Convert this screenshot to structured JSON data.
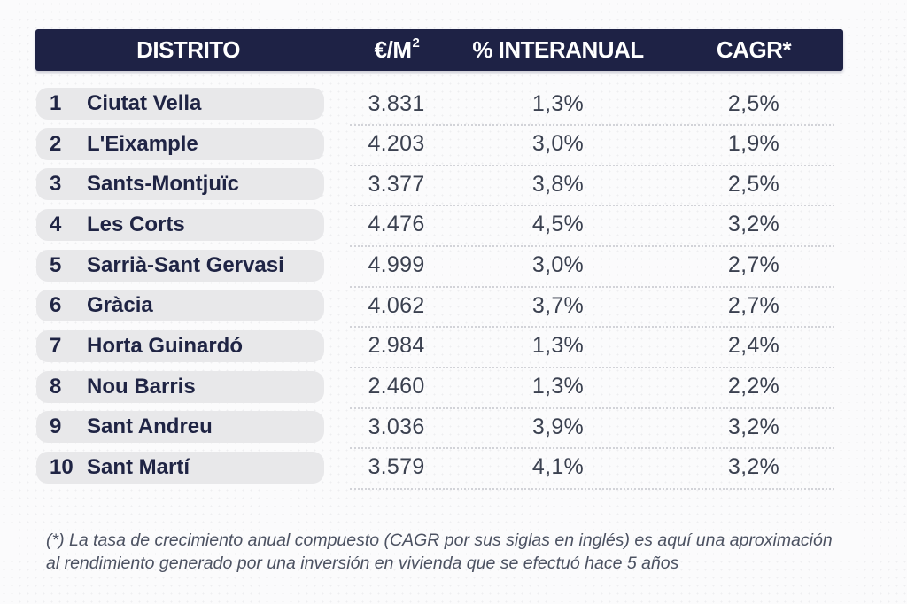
{
  "colors": {
    "header_bg": "#1e2245",
    "pill_bg": "#e8e8ea",
    "district_text": "#1f2444",
    "value_text": "#3b4150",
    "footnote_text": "#4c5262",
    "separator": "#d2d3d8"
  },
  "table": {
    "header": {
      "col1": "DISTRITO",
      "col2_base": "€/M",
      "col2_sup": "2",
      "col3": "% INTERANUAL",
      "col4": "CAGR*"
    },
    "rows": [
      {
        "rank": "1",
        "district": "Ciutat Vella",
        "eur_m2": "3.831",
        "interanual": "1,3%",
        "cagr": "2,5%"
      },
      {
        "rank": "2",
        "district": "L'Eixample",
        "eur_m2": "4.203",
        "interanual": "3,0%",
        "cagr": "1,9%"
      },
      {
        "rank": "3",
        "district": "Sants-Montjuïc",
        "eur_m2": "3.377",
        "interanual": "3,8%",
        "cagr": "2,5%"
      },
      {
        "rank": "4",
        "district": "Les Corts",
        "eur_m2": "4.476",
        "interanual": "4,5%",
        "cagr": "3,2%"
      },
      {
        "rank": "5",
        "district": "Sarrià-Sant Gervasi",
        "eur_m2": "4.999",
        "interanual": "3,0%",
        "cagr": "2,7%"
      },
      {
        "rank": "6",
        "district": "Gràcia",
        "eur_m2": "4.062",
        "interanual": "3,7%",
        "cagr": "2,7%"
      },
      {
        "rank": "7",
        "district": "Horta Guinardó",
        "eur_m2": "2.984",
        "interanual": "1,3%",
        "cagr": "2,4%"
      },
      {
        "rank": "8",
        "district": "Nou Barris",
        "eur_m2": "2.460",
        "interanual": "1,3%",
        "cagr": "2,2%"
      },
      {
        "rank": "9",
        "district": "Sant Andreu",
        "eur_m2": "3.036",
        "interanual": "3,9%",
        "cagr": "3,2%"
      },
      {
        "rank": "10",
        "district": "Sant Martí",
        "eur_m2": "3.579",
        "interanual": "4,1%",
        "cagr": "3,2%"
      }
    ]
  },
  "footnote": {
    "line1": "(*) La tasa de crecimiento anual compuesto (CAGR por sus siglas en inglés) es aquí una aproximación",
    "line2": "al rendimiento generado por una inversión en vivienda que se efectuó hace 5 años"
  },
  "chart_data": {
    "type": "table",
    "columns": [
      "DISTRITO",
      "€/M²",
      "% INTERANUAL",
      "CAGR*"
    ],
    "rows": [
      {
        "rank": 1,
        "district": "Ciutat Vella",
        "eur_m2": 3831,
        "interanual_pct": 1.3,
        "cagr_pct": 2.5
      },
      {
        "rank": 2,
        "district": "L'Eixample",
        "eur_m2": 4203,
        "interanual_pct": 3.0,
        "cagr_pct": 1.9
      },
      {
        "rank": 3,
        "district": "Sants-Montjuïc",
        "eur_m2": 3377,
        "interanual_pct": 3.8,
        "cagr_pct": 2.5
      },
      {
        "rank": 4,
        "district": "Les Corts",
        "eur_m2": 4476,
        "interanual_pct": 4.5,
        "cagr_pct": 3.2
      },
      {
        "rank": 5,
        "district": "Sarrià-Sant Gervasi",
        "eur_m2": 4999,
        "interanual_pct": 3.0,
        "cagr_pct": 2.7
      },
      {
        "rank": 6,
        "district": "Gràcia",
        "eur_m2": 4062,
        "interanual_pct": 3.7,
        "cagr_pct": 2.7
      },
      {
        "rank": 7,
        "district": "Horta Guinardó",
        "eur_m2": 2984,
        "interanual_pct": 1.3,
        "cagr_pct": 2.4
      },
      {
        "rank": 8,
        "district": "Nou Barris",
        "eur_m2": 2460,
        "interanual_pct": 1.3,
        "cagr_pct": 2.2
      },
      {
        "rank": 9,
        "district": "Sant Andreu",
        "eur_m2": 3036,
        "interanual_pct": 3.9,
        "cagr_pct": 3.2
      },
      {
        "rank": 10,
        "district": "Sant Martí",
        "eur_m2": 3579,
        "interanual_pct": 4.1,
        "cagr_pct": 3.2
      }
    ],
    "footnote": "(*) La tasa de crecimiento anual compuesto (CAGR por sus siglas en inglés) es aquí una aproximación al rendimiento generado por una inversión en vivienda que se efectuó hace 5 años"
  }
}
